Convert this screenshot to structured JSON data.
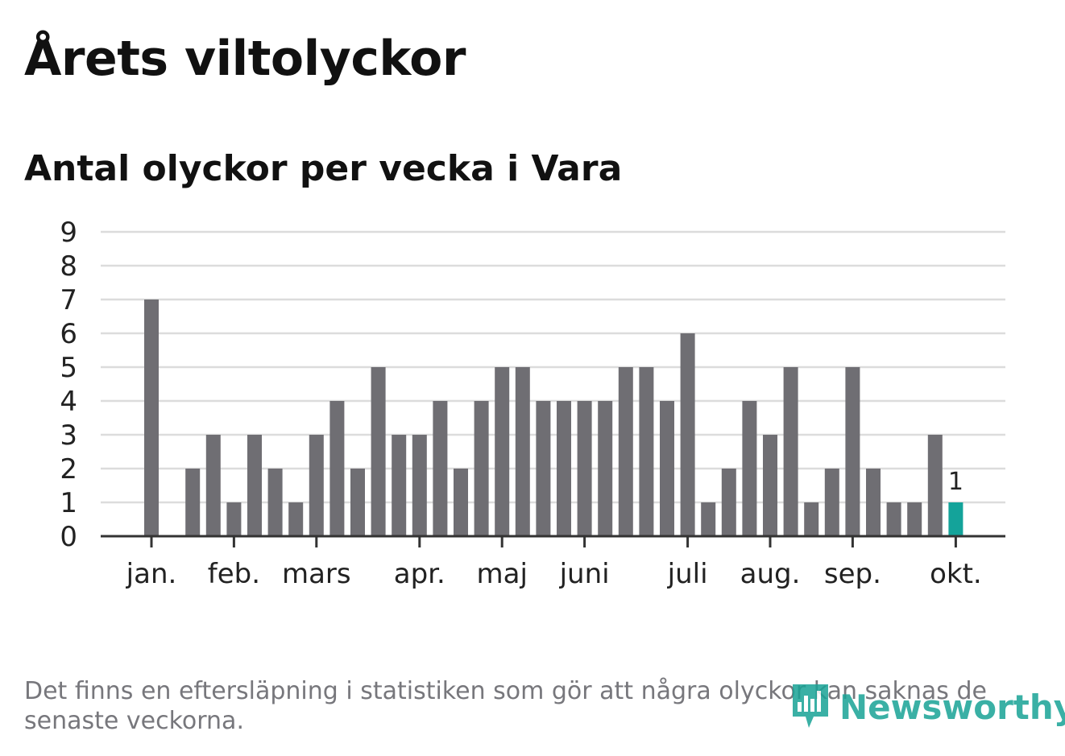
{
  "title": "Årets viltolyckor",
  "subtitle": "Antal olyckor per vecka i Vara",
  "footnote": "Det finns en eftersläpning i statistiken som gör att några olyckor kan saknas de senaste veckorna.",
  "logo": {
    "text": "Newsworthy",
    "icon": "newsworthy-logo-icon"
  },
  "colors": {
    "bar": "#6f6e73",
    "highlight": "#14a39a",
    "grid": "#dcdcdc",
    "axis": "#333333"
  },
  "chart_data": {
    "type": "bar",
    "title": "Antal olyckor per vecka i Vara",
    "xlabel": "",
    "ylabel": "",
    "ylim": [
      0,
      9
    ],
    "yticks": [
      "0",
      "1",
      "2",
      "3",
      "4",
      "5",
      "6",
      "7",
      "8",
      "9"
    ],
    "grid": true,
    "values": [
      7,
      0,
      2,
      3,
      1,
      3,
      2,
      1,
      3,
      4,
      2,
      5,
      3,
      3,
      4,
      2,
      4,
      5,
      5,
      4,
      4,
      4,
      4,
      5,
      5,
      4,
      6,
      1,
      2,
      4,
      3,
      5,
      1,
      2,
      5,
      2,
      1,
      1,
      3,
      1
    ],
    "highlight_index": 39,
    "highlight_label": "1",
    "month_ticks": [
      {
        "label": "jan.",
        "week": 0
      },
      {
        "label": "feb.",
        "week": 4
      },
      {
        "label": "mars",
        "week": 8
      },
      {
        "label": "apr.",
        "week": 13
      },
      {
        "label": "maj",
        "week": 17
      },
      {
        "label": "juni",
        "week": 21
      },
      {
        "label": "juli",
        "week": 26
      },
      {
        "label": "aug.",
        "week": 30
      },
      {
        "label": "sep.",
        "week": 34
      },
      {
        "label": "okt.",
        "week": 39
      }
    ]
  }
}
